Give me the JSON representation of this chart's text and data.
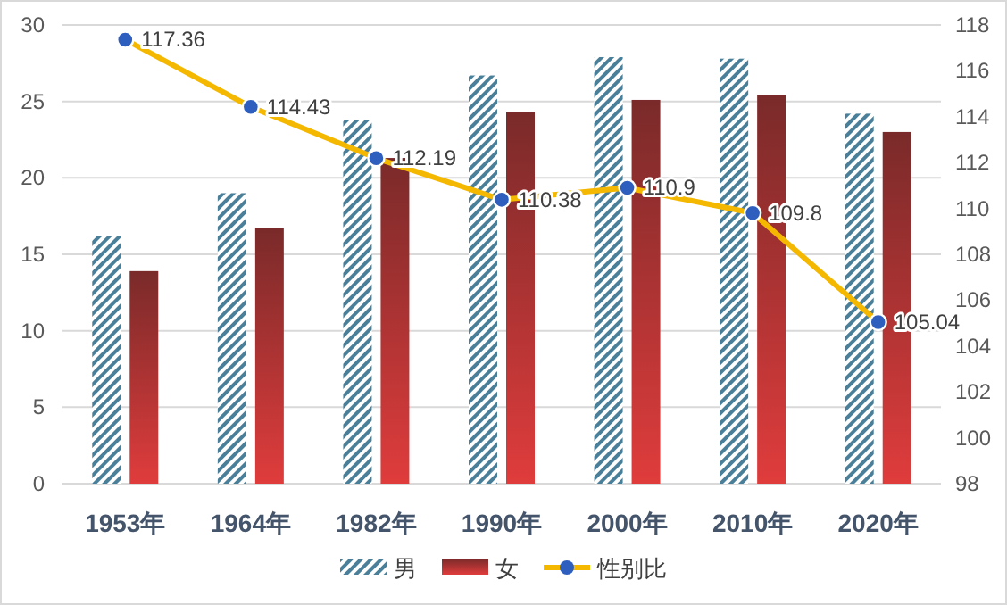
{
  "chart_data": {
    "type": "bar",
    "categories": [
      "1953年",
      "1964年",
      "1982年",
      "1990年",
      "2000年",
      "2010年",
      "2020年"
    ],
    "series": [
      {
        "name": "男",
        "color": "#4a7f99",
        "values": [
          16.2,
          19.0,
          23.8,
          26.7,
          27.9,
          27.8,
          24.2
        ]
      },
      {
        "name": "女",
        "color": "#e03c3c",
        "values": [
          13.9,
          16.7,
          21.3,
          24.3,
          25.1,
          25.4,
          23.0
        ]
      },
      {
        "name": "性别比",
        "type": "line",
        "axis": "y2",
        "color": "#f5b800",
        "values": [
          117.36,
          114.43,
          112.19,
          110.38,
          110.9,
          109.8,
          105.04
        ],
        "value_labels": [
          "117.36",
          "114.43",
          "112.19",
          "110.38",
          "110.9",
          "109.8",
          "105.04"
        ]
      }
    ],
    "ylim": [
      0,
      30
    ],
    "yticks": [
      0,
      5,
      10,
      15,
      20,
      25,
      30
    ],
    "y2lim": [
      98,
      118
    ],
    "y2ticks": [
      98,
      100,
      102,
      104,
      106,
      108,
      110,
      112,
      114,
      116,
      118
    ],
    "grid": "y",
    "legend": "bottom",
    "marker": "circle"
  }
}
